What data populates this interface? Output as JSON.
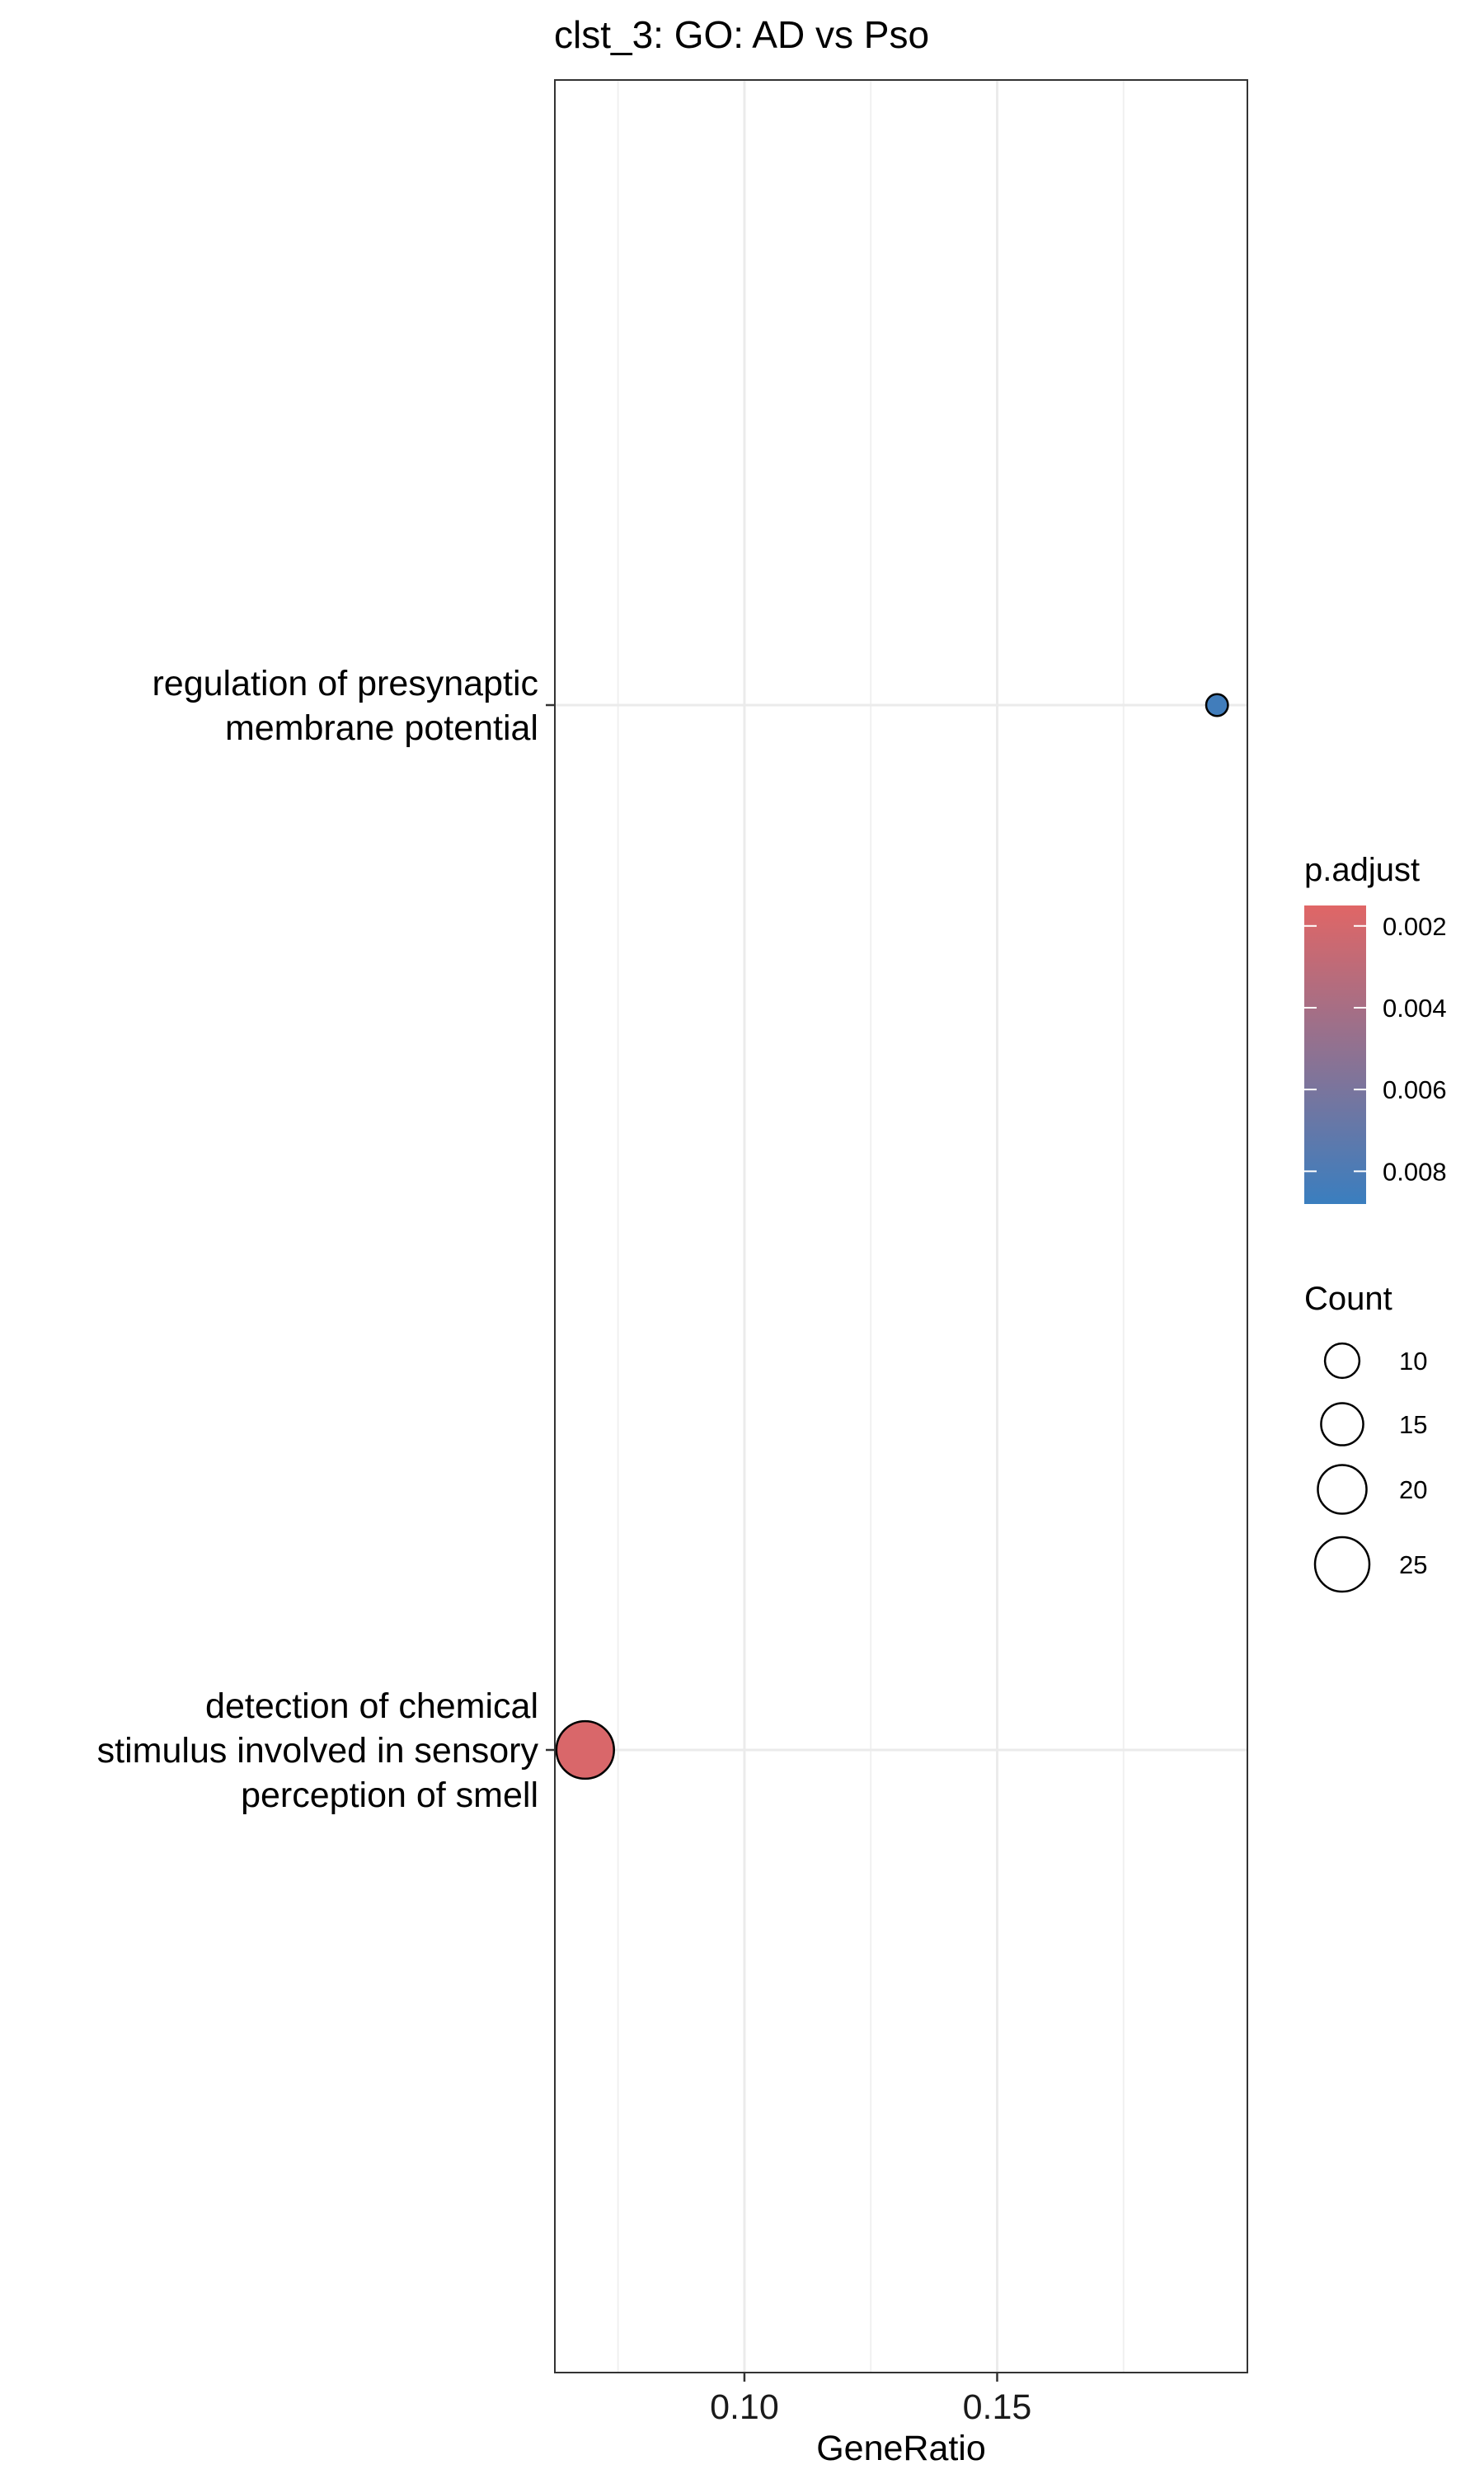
{
  "chart_data": {
    "type": "scatter",
    "title": "clst_3: GO: AD vs Pso",
    "xlabel": "GeneRatio",
    "ylabel": "",
    "xlim": [
      0.0625,
      0.1995
    ],
    "xticks": [
      0.1,
      0.15
    ],
    "xtick_labels": [
      "0.10",
      "0.15"
    ],
    "grid": true,
    "categories": [
      [
        "regulation of presynaptic",
        "membrane potential"
      ],
      [
        "detection of chemical",
        "stimulus involved in sensory",
        "perception of smell"
      ]
    ],
    "points": [
      {
        "category": 0,
        "x": 0.1935,
        "count": 4,
        "p_adjust": 0.0085
      },
      {
        "category": 1,
        "x": 0.0685,
        "count": 28,
        "p_adjust": 0.0018
      }
    ],
    "color_legend": {
      "title": "p.adjust",
      "range": [
        0.0015,
        0.0088
      ],
      "ticks": [
        0.002,
        0.004,
        0.006,
        0.008
      ],
      "tick_labels": [
        "0.002",
        "0.004",
        "0.006",
        "0.008"
      ],
      "low_color": "#e06666",
      "high_color": "#3a7ebf"
    },
    "size_legend": {
      "title": "Count",
      "values": [
        10,
        15,
        20,
        25
      ],
      "labels": [
        "10",
        "15",
        "20",
        "25"
      ]
    },
    "legend_placement": "right"
  }
}
